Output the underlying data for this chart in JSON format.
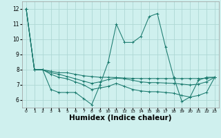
{
  "x": [
    0,
    1,
    2,
    3,
    4,
    5,
    6,
    7,
    8,
    9,
    10,
    11,
    12,
    13,
    14,
    15,
    16,
    17,
    18,
    19,
    20,
    21,
    22,
    23
  ],
  "line_main": [
    12,
    8,
    8,
    7.9,
    7.8,
    7.8,
    7.7,
    7.6,
    7.55,
    7.5,
    7.5,
    7.48,
    7.45,
    7.43,
    7.42,
    7.42,
    7.42,
    7.42,
    7.42,
    7.42,
    7.42,
    7.42,
    7.43,
    7.5
  ],
  "line_spike": [
    12,
    8,
    8,
    6.7,
    6.5,
    6.5,
    6.5,
    6.1,
    5.7,
    7.0,
    8.5,
    11.0,
    9.8,
    9.8,
    10.2,
    11.5,
    11.7,
    9.5,
    7.5,
    5.9,
    6.2,
    7.3,
    7.5,
    7.5
  ],
  "line_mid": [
    12,
    8,
    8,
    7.8,
    7.7,
    7.55,
    7.4,
    7.25,
    7.1,
    7.2,
    7.35,
    7.45,
    7.4,
    7.3,
    7.2,
    7.15,
    7.15,
    7.12,
    7.1,
    7.05,
    7.0,
    7.05,
    7.2,
    7.5
  ],
  "line_low": [
    12,
    8,
    8,
    7.7,
    7.5,
    7.4,
    7.2,
    7.0,
    6.7,
    6.8,
    6.9,
    7.1,
    6.9,
    6.7,
    6.6,
    6.55,
    6.55,
    6.5,
    6.45,
    6.3,
    6.2,
    6.3,
    6.5,
    7.5
  ],
  "bg_color": "#cff0ee",
  "line_color": "#1a7a6e",
  "grid_color": "#aed8d4",
  "xlabel": "Humidex (Indice chaleur)",
  "xlabel_fontsize": 7.5,
  "ylim": [
    5.5,
    12.5
  ],
  "xlim": [
    -0.5,
    23.5
  ],
  "yticks": [
    6,
    7,
    8,
    9,
    10,
    11,
    12
  ],
  "xtick_labels": [
    "0",
    "1",
    "2",
    "3",
    "4",
    "5",
    "6",
    "7",
    "8",
    "9",
    "10",
    "11",
    "12",
    "13",
    "14",
    "15",
    "16",
    "17",
    "18",
    "19",
    "20",
    "21",
    "22",
    "23"
  ]
}
